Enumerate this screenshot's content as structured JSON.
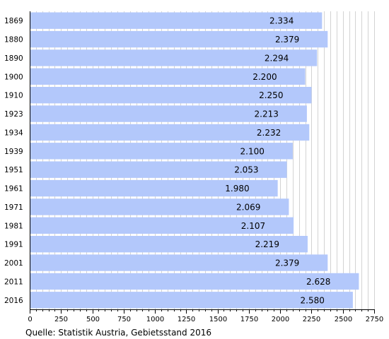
{
  "chart_data": {
    "type": "bar",
    "orientation": "horizontal",
    "categories": [
      "1869",
      "1880",
      "1890",
      "1900",
      "1910",
      "1923",
      "1934",
      "1939",
      "1951",
      "1961",
      "1971",
      "1981",
      "1991",
      "2001",
      "2011",
      "2016"
    ],
    "values": [
      2334,
      2379,
      2294,
      2200,
      2250,
      2213,
      2232,
      2100,
      2053,
      1980,
      2069,
      2107,
      2219,
      2379,
      2628,
      2580
    ],
    "value_labels": [
      "2.334",
      "2.379",
      "2.294",
      "2.200",
      "2.250",
      "2.213",
      "2.232",
      "2.100",
      "2.053",
      "1.980",
      "2.069",
      "2.107",
      "2.219",
      "2.379",
      "2.628",
      "2.580"
    ],
    "xlim": [
      0,
      2750
    ],
    "x_ticks": [
      0,
      250,
      500,
      750,
      1000,
      1250,
      1500,
      1750,
      2000,
      2250,
      2500,
      2750
    ],
    "x_minor_step": 50,
    "grid": "vertical",
    "legend": "none",
    "bar_color": "#b3c8fb",
    "grid_color": "#c8c8c8",
    "source": "Quelle: Statistik Austria, Gebietsstand 2016"
  }
}
